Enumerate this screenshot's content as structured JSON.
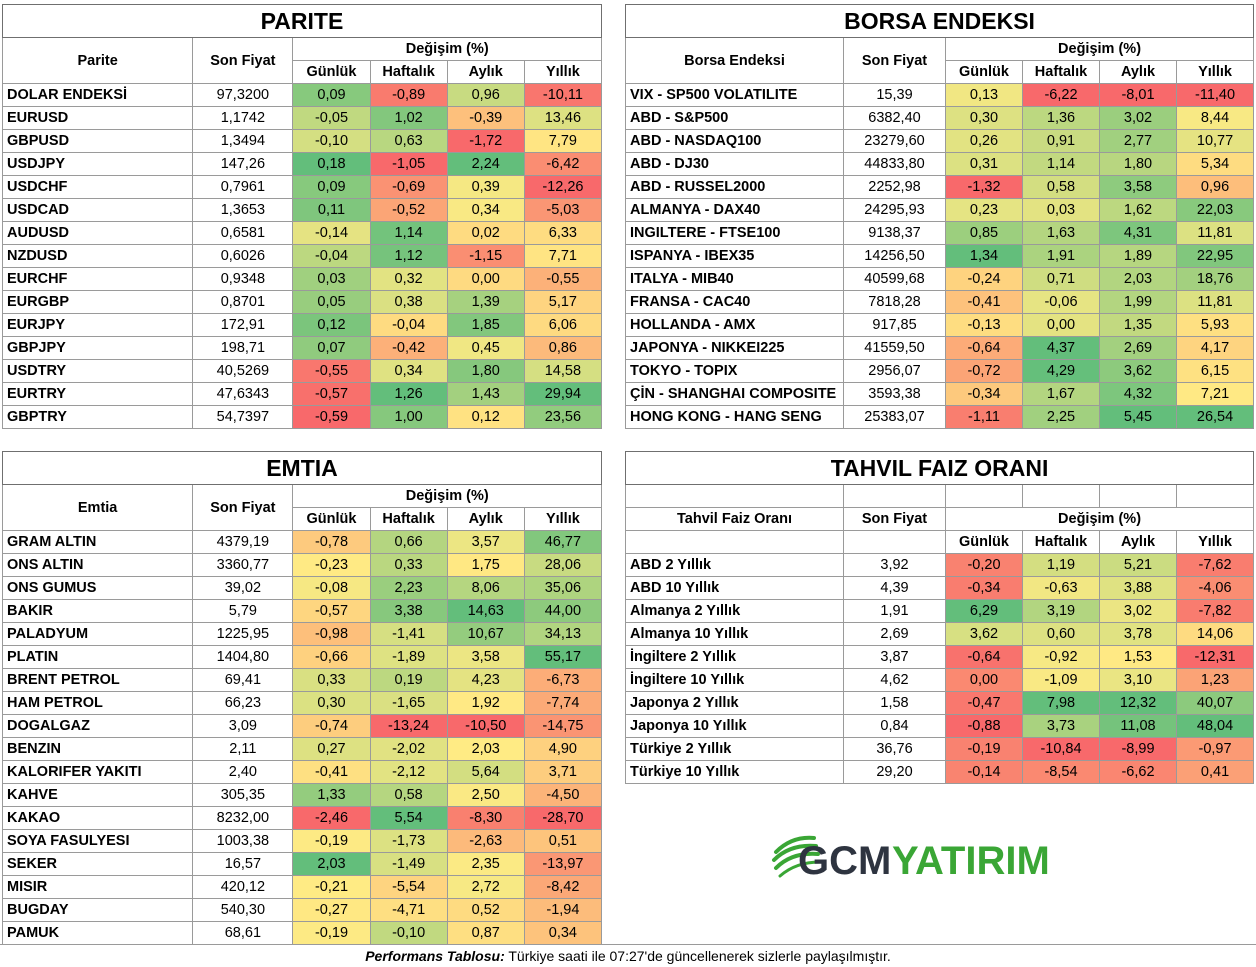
{
  "parite": {
    "title": "PARITE",
    "headers": {
      "name": "Parite",
      "price": "Son Fiyat",
      "change": "Değişim (%)",
      "d": "Günlük",
      "w": "Haftalık",
      "m": "Aylık",
      "y": "Yıllık"
    },
    "rows": [
      {
        "name": "DOLAR ENDEKSİ",
        "price": "97,3200",
        "values": [
          "0,09",
          "-0,89",
          "0,96",
          "-10,11"
        ]
      },
      {
        "name": "EURUSD",
        "price": "1,1742",
        "values": [
          "-0,05",
          "1,02",
          "-0,39",
          "13,46"
        ]
      },
      {
        "name": "GBPUSD",
        "price": "1,3494",
        "values": [
          "-0,10",
          "0,63",
          "-1,72",
          "7,79"
        ]
      },
      {
        "name": "USDJPY",
        "price": "147,26",
        "values": [
          "0,18",
          "-1,05",
          "2,24",
          "-6,42"
        ]
      },
      {
        "name": "USDCHF",
        "price": "0,7961",
        "values": [
          "0,09",
          "-0,69",
          "0,39",
          "-12,26"
        ]
      },
      {
        "name": "USDCAD",
        "price": "1,3653",
        "values": [
          "0,11",
          "-0,52",
          "0,34",
          "-5,03"
        ]
      },
      {
        "name": "AUDUSD",
        "price": "0,6581",
        "values": [
          "-0,14",
          "1,14",
          "0,02",
          "6,33"
        ]
      },
      {
        "name": "NZDUSD",
        "price": "0,6026",
        "values": [
          "-0,04",
          "1,12",
          "-1,15",
          "7,71"
        ]
      },
      {
        "name": "EURCHF",
        "price": "0,9348",
        "values": [
          "0,03",
          "0,32",
          "0,00",
          "-0,55"
        ]
      },
      {
        "name": "EURGBP",
        "price": "0,8701",
        "values": [
          "0,05",
          "0,38",
          "1,39",
          "5,17"
        ]
      },
      {
        "name": "EURJPY",
        "price": "172,91",
        "values": [
          "0,12",
          "-0,04",
          "1,85",
          "6,06"
        ]
      },
      {
        "name": "GBPJPY",
        "price": "198,71",
        "values": [
          "0,07",
          "-0,42",
          "0,45",
          "0,86"
        ]
      },
      {
        "name": "USDTRY",
        "price": "40,5269",
        "values": [
          "-0,55",
          "0,34",
          "1,80",
          "14,58"
        ]
      },
      {
        "name": "EURTRY",
        "price": "47,6343",
        "values": [
          "-0,57",
          "1,26",
          "1,43",
          "29,94"
        ]
      },
      {
        "name": "GBPTRY",
        "price": "54,7397",
        "values": [
          "-0,59",
          "1,00",
          "0,12",
          "23,56"
        ]
      }
    ]
  },
  "borsa": {
    "title": "BORSA ENDEKSI",
    "headers": {
      "name": "Borsa Endeksi",
      "price": "Son Fiyat",
      "change": "Değişim (%)",
      "d": "Günlük",
      "w": "Haftalık",
      "m": "Aylık",
      "y": "Yıllık"
    },
    "rows": [
      {
        "name": "VIX  - SP500 VOLATILITE",
        "price": "15,39",
        "values": [
          "0,13",
          "-6,22",
          "-8,01",
          "-11,40"
        ]
      },
      {
        "name": "ABD - S&P500",
        "price": "6382,40",
        "values": [
          "0,30",
          "1,36",
          "3,02",
          "8,44"
        ]
      },
      {
        "name": "ABD - NASDAQ100",
        "price": "23279,60",
        "values": [
          "0,26",
          "0,91",
          "2,77",
          "10,77"
        ]
      },
      {
        "name": "ABD - DJ30",
        "price": "44833,80",
        "values": [
          "0,31",
          "1,14",
          "1,80",
          "5,34"
        ]
      },
      {
        "name": "ABD - RUSSEL2000",
        "price": "2252,98",
        "values": [
          "-1,32",
          "0,58",
          "3,58",
          "0,96"
        ]
      },
      {
        "name": "ALMANYA - DAX40",
        "price": "24295,93",
        "values": [
          "0,23",
          "0,03",
          "1,62",
          "22,03"
        ]
      },
      {
        "name": "INGILTERE - FTSE100",
        "price": "9138,37",
        "values": [
          "0,85",
          "1,63",
          "4,31",
          "11,81"
        ]
      },
      {
        "name": "ISPANYA - IBEX35",
        "price": "14256,50",
        "values": [
          "1,34",
          "1,91",
          "1,89",
          "22,95"
        ]
      },
      {
        "name": "ITALYA - MIB40",
        "price": "40599,68",
        "values": [
          "-0,24",
          "0,71",
          "2,03",
          "18,76"
        ]
      },
      {
        "name": "FRANSA - CAC40",
        "price": "7818,28",
        "values": [
          "-0,41",
          "-0,06",
          "1,99",
          "11,81"
        ]
      },
      {
        "name": "HOLLANDA - AMX",
        "price": "917,85",
        "values": [
          "-0,13",
          "0,00",
          "1,35",
          "5,93"
        ]
      },
      {
        "name": "JAPONYA - NIKKEI225",
        "price": "41559,50",
        "values": [
          "-0,64",
          "4,37",
          "2,69",
          "4,17"
        ]
      },
      {
        "name": "TOKYO - TOPIX",
        "price": "2956,07",
        "values": [
          "-0,72",
          "4,29",
          "3,62",
          "6,15"
        ]
      },
      {
        "name": "ÇİN - SHANGHAI COMPOSITE",
        "price": "3593,38",
        "values": [
          "-0,34",
          "1,67",
          "4,32",
          "7,21"
        ]
      },
      {
        "name": "HONG KONG - HANG SENG",
        "price": "25383,07",
        "values": [
          "-1,11",
          "2,25",
          "5,45",
          "26,54"
        ]
      }
    ]
  },
  "emtia": {
    "title": "EMTIA",
    "headers": {
      "name": "Emtia",
      "price": "Son Fiyat",
      "change": "Değişim (%)",
      "d": "Günlük",
      "w": "Haftalık",
      "m": "Aylık",
      "y": "Yıllık"
    },
    "rows": [
      {
        "name": "GRAM ALTIN",
        "price": "4379,19",
        "values": [
          "-0,78",
          "0,66",
          "3,57",
          "46,77"
        ]
      },
      {
        "name": "ONS ALTIN",
        "price": "3360,77",
        "values": [
          "-0,23",
          "0,33",
          "1,75",
          "28,06"
        ]
      },
      {
        "name": "ONS GUMUS",
        "price": "39,02",
        "values": [
          "-0,08",
          "2,23",
          "8,06",
          "35,06"
        ]
      },
      {
        "name": "BAKIR",
        "price": "5,79",
        "values": [
          "-0,57",
          "3,38",
          "14,63",
          "44,00"
        ]
      },
      {
        "name": "PALADYUM",
        "price": "1225,95",
        "values": [
          "-0,98",
          "-1,41",
          "10,67",
          "34,13"
        ]
      },
      {
        "name": "PLATIN",
        "price": "1404,80",
        "values": [
          "-0,66",
          "-1,89",
          "3,58",
          "55,17"
        ]
      },
      {
        "name": "BRENT PETROL",
        "price": "69,41",
        "values": [
          "0,33",
          "0,19",
          "4,23",
          "-6,73"
        ]
      },
      {
        "name": "HAM PETROL",
        "price": "66,23",
        "values": [
          "0,30",
          "-1,65",
          "1,92",
          "-7,74"
        ]
      },
      {
        "name": "DOGALGAZ",
        "price": "3,09",
        "values": [
          "-0,74",
          "-13,24",
          "-10,50",
          "-14,75"
        ]
      },
      {
        "name": "BENZIN",
        "price": "2,11",
        "values": [
          "0,27",
          "-2,02",
          "2,03",
          "4,90"
        ]
      },
      {
        "name": "KALORIFER YAKITI",
        "price": "2,40",
        "values": [
          "-0,41",
          "-2,12",
          "5,64",
          "3,71"
        ]
      },
      {
        "name": "KAHVE",
        "price": "305,35",
        "values": [
          "1,33",
          "0,58",
          "2,50",
          "-4,50"
        ]
      },
      {
        "name": "KAKAO",
        "price": "8232,00",
        "values": [
          "-2,46",
          "5,54",
          "-8,30",
          "-28,70"
        ]
      },
      {
        "name": "SOYA FASULYESI",
        "price": "1003,38",
        "values": [
          "-0,19",
          "-1,73",
          "-2,63",
          "0,51"
        ]
      },
      {
        "name": "SEKER",
        "price": "16,57",
        "values": [
          "2,03",
          "-1,49",
          "2,35",
          "-13,97"
        ]
      },
      {
        "name": "MISIR",
        "price": "420,12",
        "values": [
          "-0,21",
          "-5,54",
          "2,72",
          "-8,42"
        ]
      },
      {
        "name": "BUGDAY",
        "price": "540,30",
        "values": [
          "-0,27",
          "-4,71",
          "0,52",
          "-1,94"
        ]
      },
      {
        "name": "PAMUK",
        "price": "68,61",
        "values": [
          "-0,19",
          "-0,10",
          "0,87",
          "0,34"
        ]
      }
    ]
  },
  "tahvil": {
    "title": "TAHVIL FAIZ ORANI",
    "headers": {
      "name": "Tahvil Faiz Oranı",
      "price": "Son Fiyat",
      "change": "Değişim (%)",
      "d": "Günlük",
      "w": "Haftalık",
      "m": "Aylık",
      "y": "Yıllık"
    },
    "rows": [
      {
        "name": "ABD 2 Yıllık",
        "price": "3,92",
        "values": [
          "-0,20",
          "1,19",
          "5,21",
          "-7,62"
        ]
      },
      {
        "name": "ABD 10 Yıllık",
        "price": "4,39",
        "values": [
          "-0,34",
          "-0,63",
          "3,88",
          "-4,06"
        ]
      },
      {
        "name": "Almanya 2 Yıllık",
        "price": "1,91",
        "values": [
          "6,29",
          "3,19",
          "3,02",
          "-7,82"
        ]
      },
      {
        "name": "Almanya 10 Yıllık",
        "price": "2,69",
        "values": [
          "3,62",
          "0,60",
          "3,78",
          "14,06"
        ]
      },
      {
        "name": "İngiltere 2 Yıllık",
        "price": "3,87",
        "values": [
          "-0,64",
          "-0,92",
          "1,53",
          "-12,31"
        ]
      },
      {
        "name": "İngiltere 10 Yıllık",
        "price": "4,62",
        "values": [
          "0,00",
          "-1,09",
          "3,10",
          "1,23"
        ]
      },
      {
        "name": "Japonya 2 Yıllık",
        "price": "1,58",
        "values": [
          "-0,47",
          "7,98",
          "12,32",
          "40,07"
        ]
      },
      {
        "name": "Japonya 10 Yıllık",
        "price": "0,84",
        "values": [
          "-0,88",
          "3,73",
          "11,08",
          "48,04"
        ]
      },
      {
        "name": "Türkiye 2 Yıllık",
        "price": "36,76",
        "values": [
          "-0,19",
          "-10,84",
          "-8,99",
          "-0,97"
        ]
      },
      {
        "name": "Türkiye 10 Yıllık",
        "price": "29,20",
        "values": [
          "-0,14",
          "-8,54",
          "-6,62",
          "0,41"
        ]
      }
    ]
  },
  "logo": {
    "prefix": "GCM",
    "suffix": "YATIRIM",
    "accent": "#3aa635",
    "dark": "#2e3440"
  },
  "footer": {
    "bold": "Performans Tablosu:",
    "text": " Türkiye saati ile 07:27'de güncellenerek sizlerle paylaşılmıştır."
  },
  "colors": {
    "red": "#f8696b",
    "yellow": "#ffeb84",
    "green": "#63be7b"
  }
}
